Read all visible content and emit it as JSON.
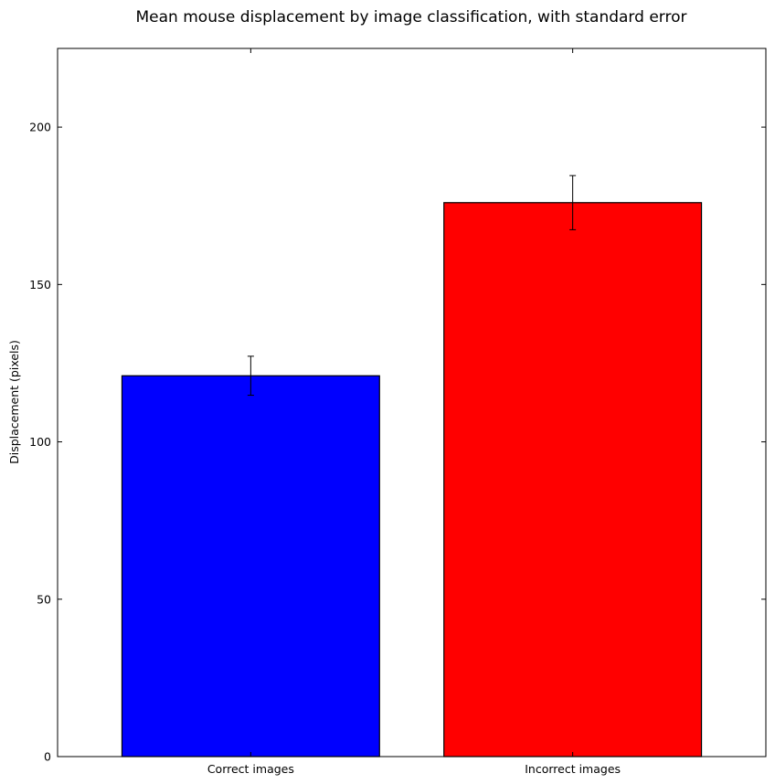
{
  "chart_data": {
    "type": "bar",
    "title": "Mean mouse displacement by image classification, with standard error",
    "xlabel": "",
    "ylabel": "Displacement (pixels)",
    "categories": [
      "Correct images",
      "Incorrect images"
    ],
    "values": [
      121,
      176
    ],
    "errors": [
      6.2,
      8.6
    ],
    "colors": [
      "#0000ff",
      "#ff0000"
    ],
    "ylim": [
      0,
      225
    ],
    "yticks": [
      0,
      50,
      100,
      150,
      200
    ],
    "grid": false
  }
}
